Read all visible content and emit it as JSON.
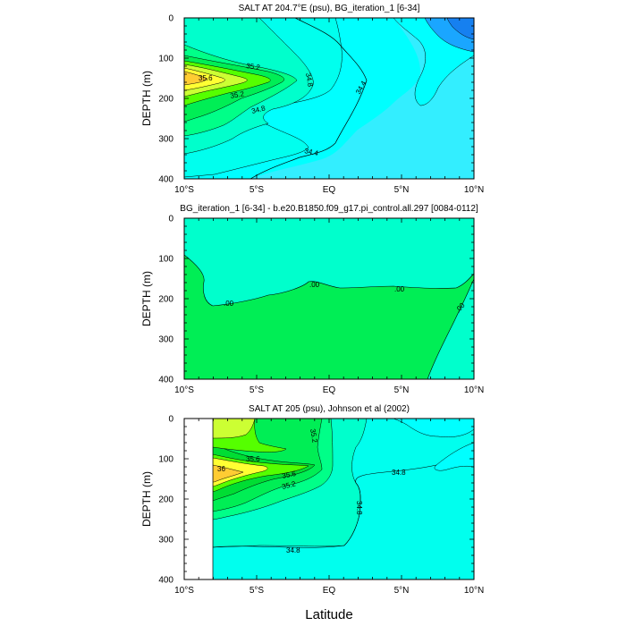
{
  "xlabel": "Latitude",
  "colors": {
    "c_343": "#00e6e6",
    "c_344": "#00ffff",
    "c_345": "#33eeff",
    "c_346": "#00ffee",
    "c_347": "#00ffcc",
    "c_348": "#00ffaa",
    "c_349": "#00ff88",
    "c_350": "#00ee55",
    "c_352": "#00dd33",
    "c_354": "#55ff00",
    "c_356": "#ccff33",
    "c_358": "#ffff33",
    "c_360": "#ffcc33",
    "deep": "#1aa6ff",
    "dark": "#1680f0",
    "diff_pos": "#00ffcc",
    "diff_neg": "#00ee55"
  },
  "chart_data": [
    {
      "type": "contour",
      "title": "SALT AT 204.7°E (psu), BG_iteration_1 [6-34]",
      "ylabel": "DEPTH (m)",
      "xlim": [
        -10,
        10
      ],
      "ylim": [
        400,
        0
      ],
      "xticks": [
        "10°S",
        "5°S",
        "EQ",
        "5°N",
        "10°N"
      ],
      "yticks": [
        "0",
        "100",
        "200",
        "300",
        "400"
      ],
      "contour_labels": [
        "35.2",
        "35.6",
        "35.2",
        "34.8",
        "34.8",
        "34.4",
        "34.4"
      ]
    },
    {
      "type": "contour",
      "title": "BG_iteration_1 [6-34] - b.e20.B1850.f09_g17.pi_control.all.297 [0084-0112]",
      "ylabel": "DEPTH (m)",
      "xlim": [
        -10,
        10
      ],
      "ylim": [
        400,
        0
      ],
      "xticks": [
        "10°S",
        "5°S",
        "EQ",
        "5°N",
        "10°N"
      ],
      "yticks": [
        "0",
        "100",
        "200",
        "300",
        "400"
      ],
      "contour_labels": [
        ".00",
        ".00",
        ".00",
        ".00"
      ]
    },
    {
      "type": "contour",
      "title": "SALT AT 205 (psu), Johnson et al (2002)",
      "ylabel": "DEPTH (m)",
      "xlim": [
        -10,
        10
      ],
      "ylim": [
        400,
        0
      ],
      "data_xrange": [
        -8,
        10
      ],
      "xticks": [
        "10°S",
        "5°S",
        "EQ",
        "5°N",
        "10°N"
      ],
      "yticks": [
        "0",
        "100",
        "200",
        "300",
        "400"
      ],
      "contour_labels": [
        "35.2",
        "35.6",
        "36",
        "35.6",
        "35.2",
        "34.8",
        "34.8",
        "34.8"
      ]
    }
  ]
}
